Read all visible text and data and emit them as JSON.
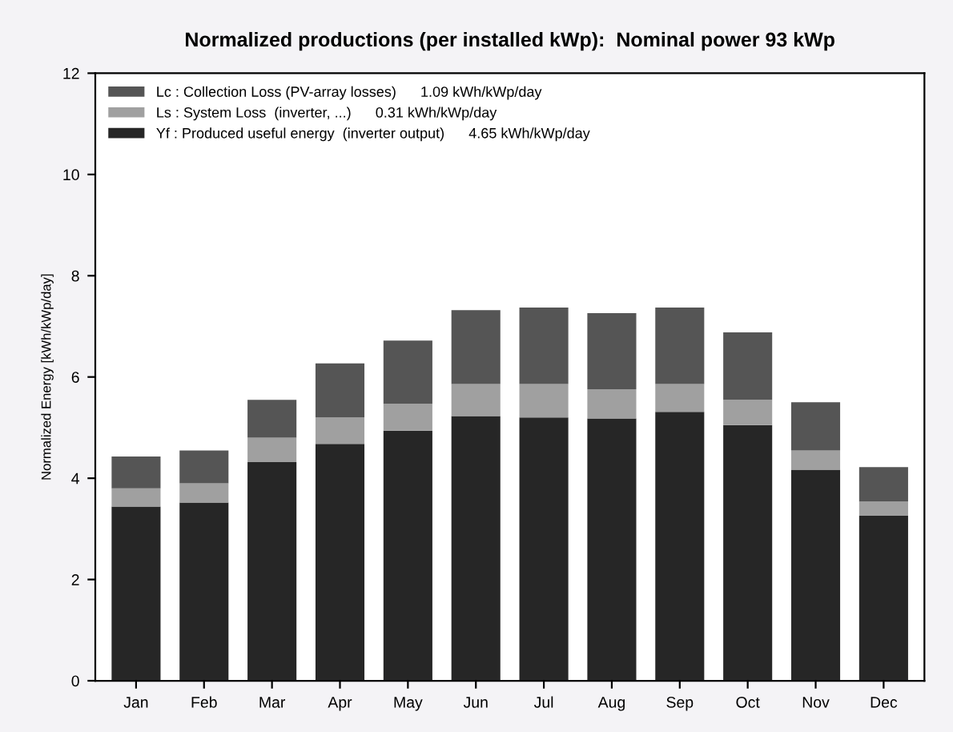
{
  "chart_data": {
    "type": "bar",
    "stacked": true,
    "title": "Normalized productions (per installed kWp):  Nominal power 93 kWp",
    "ylabel": "Normalized Energy [kWh/kWp/day]",
    "categories": [
      "Jan",
      "Feb",
      "Mar",
      "Apr",
      "May",
      "Jun",
      "Jul",
      "Aug",
      "Sep",
      "Oct",
      "Nov",
      "Dec"
    ],
    "series": [
      {
        "name": "Yf : Produced useful energy  (inverter output)      4.65 kWh/kWp/day",
        "color": "#262626",
        "values": [
          3.44,
          3.52,
          4.32,
          4.68,
          4.94,
          5.23,
          5.2,
          5.18,
          5.31,
          5.05,
          4.17,
          3.26
        ]
      },
      {
        "name": "Ls : System Loss  (inverter, ...)      0.31 kWh/kWp/day",
        "color": "#a0a0a0",
        "values": [
          0.36,
          0.38,
          0.48,
          0.52,
          0.53,
          0.63,
          0.66,
          0.58,
          0.55,
          0.5,
          0.38,
          0.28
        ]
      },
      {
        "name": "Lc : Collection Loss (PV-array losses)      1.09 kWh/kWp/day",
        "color": "#555555",
        "values": [
          0.63,
          0.65,
          0.75,
          1.07,
          1.25,
          1.46,
          1.51,
          1.5,
          1.51,
          1.33,
          0.95,
          0.68
        ]
      }
    ],
    "ylim": [
      0,
      12
    ],
    "yticks": [
      0,
      2,
      4,
      6,
      8,
      10,
      12
    ],
    "legend": "top left",
    "grid": false
  }
}
